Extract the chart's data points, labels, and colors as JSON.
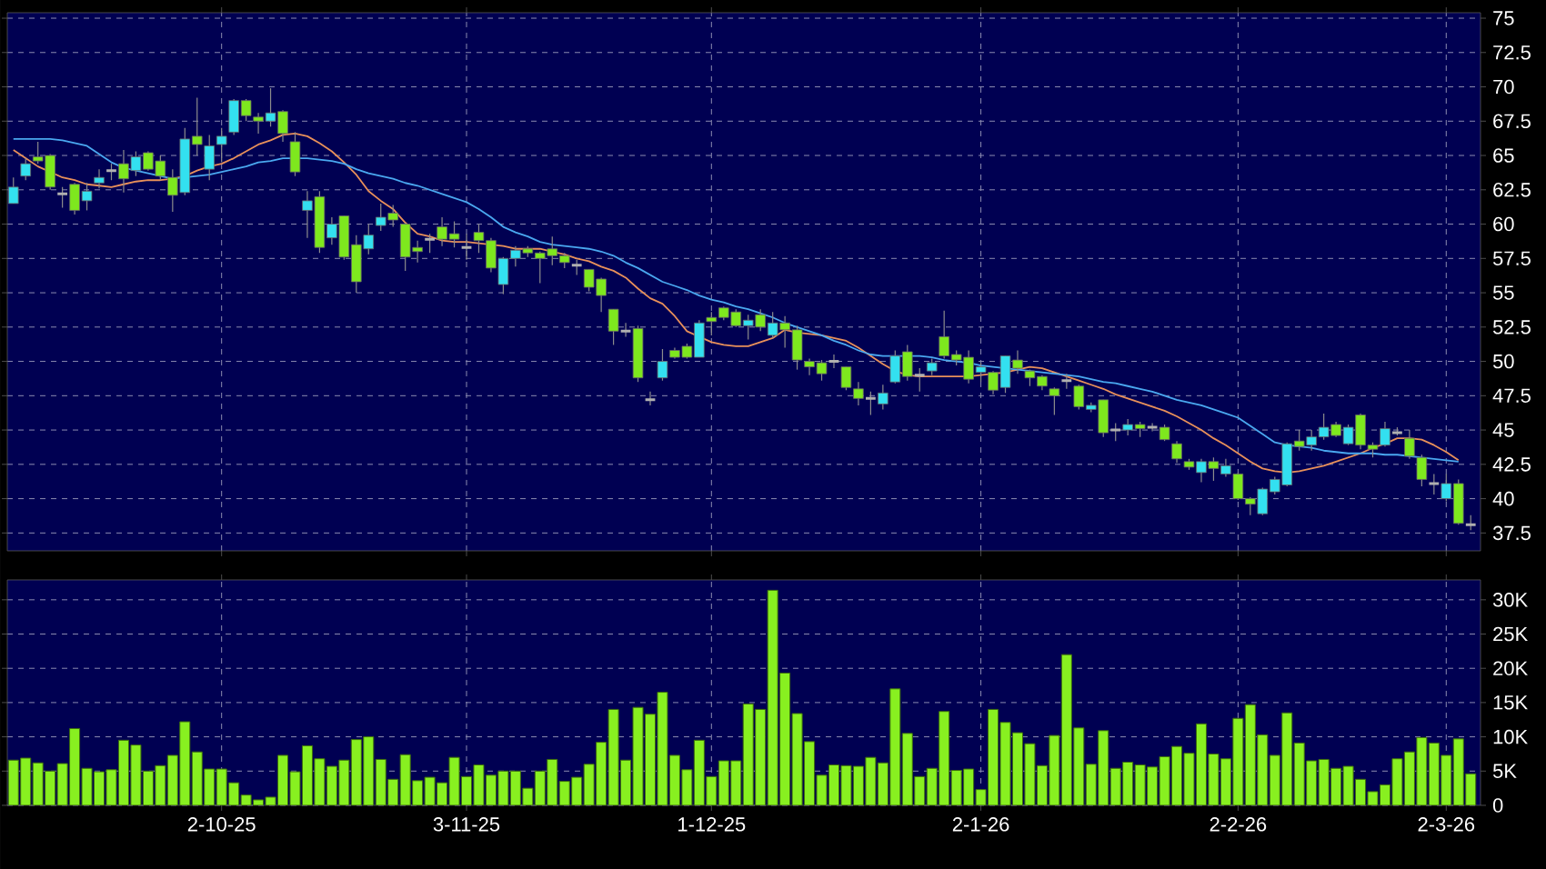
{
  "chart_data": [
    {
      "type": "candlestick",
      "grid": true,
      "tick_labels": "y",
      "ylim": [
        36.2,
        75.4
      ],
      "yticks": [
        37.5,
        40,
        42.5,
        45,
        47.5,
        50,
        52.5,
        55,
        57.5,
        60,
        62.5,
        65,
        67.5,
        70,
        72.5,
        75
      ],
      "categories": [
        null,
        null,
        null,
        null,
        null,
        null,
        null,
        null,
        null,
        null,
        null,
        null,
        null,
        null,
        null,
        null,
        null,
        null,
        null,
        null,
        null,
        null,
        null,
        null,
        null,
        null,
        null,
        null,
        null,
        null,
        null,
        null,
        null,
        null,
        null,
        null,
        null,
        null,
        null,
        null,
        null,
        null,
        null,
        null,
        null,
        null,
        null,
        null,
        null,
        null,
        null,
        null,
        null,
        null,
        null,
        null,
        null,
        null,
        null,
        null,
        null,
        null,
        null,
        null,
        null,
        null,
        null,
        null,
        null,
        null,
        null,
        null,
        null,
        null,
        null,
        null,
        null,
        null,
        null,
        null,
        null,
        null,
        null,
        null,
        null,
        null,
        null,
        null,
        null,
        null,
        null,
        null,
        null,
        null,
        null,
        null,
        null,
        null,
        null,
        null,
        null,
        null,
        null,
        null,
        null,
        null,
        null,
        null,
        null,
        null,
        null,
        null,
        null,
        null,
        null,
        null,
        null,
        null,
        null,
        null
      ],
      "ohlc": [
        [
          61.5,
          63.4,
          61.5,
          62.7
        ],
        [
          63.5,
          64.8,
          63.2,
          64.4
        ],
        [
          64.9,
          66.0,
          64.4,
          64.6
        ],
        [
          65.0,
          65.1,
          62.5,
          62.7
        ],
        [
          62.2,
          62.7,
          61.2,
          62.2
        ],
        [
          62.9,
          63.0,
          60.7,
          61.0
        ],
        [
          61.7,
          63.0,
          61.0,
          62.4
        ],
        [
          63.0,
          64.0,
          62.6,
          63.4
        ],
        [
          63.9,
          64.4,
          63.2,
          63.9
        ],
        [
          64.4,
          65.4,
          62.3,
          63.3
        ],
        [
          63.9,
          65.3,
          63.5,
          64.9
        ],
        [
          65.2,
          65.3,
          63.9,
          64.0
        ],
        [
          64.6,
          65.0,
          63.2,
          63.5
        ],
        [
          63.4,
          64.0,
          60.9,
          62.1
        ],
        [
          62.3,
          67.0,
          62.1,
          66.2
        ],
        [
          66.4,
          69.2,
          65.0,
          65.8
        ],
        [
          64.0,
          66.5,
          63.2,
          65.7
        ],
        [
          65.8,
          67.0,
          64.5,
          66.4
        ],
        [
          66.7,
          69.1,
          66.5,
          69.0
        ],
        [
          69.0,
          69.1,
          67.5,
          67.9
        ],
        [
          67.8,
          68.1,
          66.6,
          67.5
        ],
        [
          67.5,
          69.9,
          67.1,
          68.1
        ],
        [
          68.2,
          68.3,
          66.0,
          66.6
        ],
        [
          66.0,
          66.7,
          63.5,
          63.8
        ],
        [
          61.0,
          62.4,
          59.0,
          61.7
        ],
        [
          62.0,
          62.4,
          57.9,
          58.3
        ],
        [
          59.0,
          60.5,
          58.5,
          60.0
        ],
        [
          60.6,
          60.6,
          57.4,
          57.6
        ],
        [
          58.5,
          59.2,
          55.0,
          55.8
        ],
        [
          58.2,
          60.0,
          57.8,
          59.2
        ],
        [
          59.9,
          61.5,
          59.5,
          60.5
        ],
        [
          60.8,
          61.4,
          59.8,
          60.3
        ],
        [
          60.0,
          60.1,
          56.6,
          57.6
        ],
        [
          58.3,
          58.8,
          57.2,
          58.0
        ],
        [
          58.9,
          59.3,
          57.9,
          58.9
        ],
        [
          59.8,
          60.5,
          58.4,
          58.9
        ],
        [
          59.3,
          60.2,
          58.3,
          58.9
        ],
        [
          58.3,
          59.3,
          57.4,
          58.3
        ],
        [
          59.4,
          60.0,
          57.9,
          58.8
        ],
        [
          58.8,
          59.0,
          56.5,
          56.8
        ],
        [
          55.6,
          57.6,
          54.9,
          57.5
        ],
        [
          57.5,
          58.4,
          56.9,
          58.1
        ],
        [
          58.2,
          58.4,
          57.6,
          57.9
        ],
        [
          57.9,
          58.0,
          55.7,
          57.5
        ],
        [
          58.2,
          59.1,
          57.0,
          57.7
        ],
        [
          57.7,
          57.9,
          56.8,
          57.2
        ],
        [
          57.0,
          57.4,
          56.3,
          57.0
        ],
        [
          56.7,
          56.7,
          55.1,
          55.4
        ],
        [
          56.0,
          56.1,
          53.6,
          54.8
        ],
        [
          53.8,
          53.8,
          51.2,
          52.2
        ],
        [
          52.2,
          52.8,
          51.8,
          52.2
        ],
        [
          52.4,
          52.6,
          48.5,
          48.8
        ],
        [
          47.2,
          47.8,
          46.8,
          47.2
        ],
        [
          48.8,
          50.9,
          48.6,
          50.0
        ],
        [
          50.8,
          51.0,
          50.2,
          50.3
        ],
        [
          51.1,
          51.3,
          50.2,
          50.3
        ],
        [
          50.3,
          53.0,
          50.3,
          52.8
        ],
        [
          53.2,
          53.6,
          51.9,
          52.9
        ],
        [
          53.9,
          54.0,
          53.0,
          53.2
        ],
        [
          53.6,
          53.8,
          52.5,
          52.6
        ],
        [
          52.6,
          53.4,
          51.6,
          53.0
        ],
        [
          53.4,
          53.8,
          52.2,
          52.5
        ],
        [
          51.9,
          53.6,
          51.7,
          52.8
        ],
        [
          52.8,
          53.3,
          51.0,
          52.3
        ],
        [
          52.3,
          52.6,
          49.4,
          50.1
        ],
        [
          50.0,
          50.2,
          49.0,
          49.6
        ],
        [
          49.9,
          50.1,
          48.6,
          49.1
        ],
        [
          50.0,
          50.5,
          49.5,
          50.0
        ],
        [
          49.6,
          49.6,
          47.9,
          48.1
        ],
        [
          48.0,
          48.5,
          46.8,
          47.3
        ],
        [
          47.3,
          47.8,
          46.1,
          47.3
        ],
        [
          46.9,
          48.3,
          46.5,
          47.7
        ],
        [
          48.5,
          50.8,
          48.4,
          50.4
        ],
        [
          50.7,
          51.2,
          48.6,
          48.9
        ],
        [
          49.0,
          49.5,
          47.8,
          49.0
        ],
        [
          49.3,
          50.2,
          49.0,
          49.9
        ],
        [
          51.8,
          53.7,
          50.2,
          50.4
        ],
        [
          50.5,
          50.8,
          49.7,
          50.1
        ],
        [
          50.3,
          50.8,
          48.4,
          48.7
        ],
        [
          49.2,
          49.9,
          48.5,
          49.6
        ],
        [
          49.2,
          49.3,
          47.6,
          47.9
        ],
        [
          48.1,
          50.4,
          47.7,
          50.4
        ],
        [
          50.1,
          50.8,
          49.1,
          49.5
        ],
        [
          49.3,
          49.4,
          48.2,
          48.8
        ],
        [
          48.9,
          49.0,
          47.9,
          48.2
        ],
        [
          48.0,
          48.1,
          46.1,
          47.5
        ],
        [
          48.6,
          49.1,
          48.0,
          48.6
        ],
        [
          48.2,
          48.3,
          46.5,
          46.7
        ],
        [
          46.5,
          47.0,
          46.3,
          46.8
        ],
        [
          47.2,
          47.2,
          44.5,
          44.8
        ],
        [
          45.0,
          45.5,
          44.2,
          45.0
        ],
        [
          45.0,
          45.8,
          44.6,
          45.4
        ],
        [
          45.4,
          45.6,
          44.5,
          45.1
        ],
        [
          45.2,
          45.5,
          44.9,
          45.2
        ],
        [
          45.2,
          45.4,
          44.2,
          44.3
        ],
        [
          44.0,
          44.2,
          42.6,
          42.9
        ],
        [
          42.7,
          42.9,
          42.1,
          42.3
        ],
        [
          41.9,
          42.9,
          41.2,
          42.7
        ],
        [
          42.7,
          43.0,
          41.3,
          42.2
        ],
        [
          41.8,
          42.9,
          41.6,
          42.4
        ],
        [
          41.8,
          41.9,
          39.9,
          40.0
        ],
        [
          40.0,
          40.1,
          38.8,
          39.6
        ],
        [
          38.9,
          40.8,
          38.8,
          40.7
        ],
        [
          40.5,
          41.6,
          40.3,
          41.4
        ],
        [
          41.0,
          44.1,
          40.9,
          44.0
        ],
        [
          44.2,
          45.0,
          43.5,
          43.8
        ],
        [
          43.9,
          45.0,
          43.5,
          44.5
        ],
        [
          44.5,
          46.2,
          44.3,
          45.2
        ],
        [
          45.4,
          45.6,
          44.5,
          44.6
        ],
        [
          44.0,
          45.4,
          43.9,
          45.2
        ],
        [
          46.1,
          46.2,
          43.6,
          43.9
        ],
        [
          43.9,
          44.1,
          43.0,
          43.6
        ],
        [
          43.9,
          45.6,
          43.8,
          45.1
        ],
        [
          44.8,
          45.2,
          44.6,
          44.8
        ],
        [
          44.4,
          45.0,
          42.9,
          43.1
        ],
        [
          43.0,
          43.2,
          40.9,
          41.4
        ],
        [
          41.1,
          41.8,
          40.3,
          41.1
        ],
        [
          40.0,
          41.8,
          39.8,
          41.1
        ],
        [
          41.1,
          41.4,
          38.1,
          38.2
        ],
        [
          38.1,
          38.8,
          37.7,
          38.1
        ]
      ],
      "series": [
        {
          "type": "line",
          "color": "#e8905a",
          "values": [
            65.4,
            64.8,
            64.2,
            63.8,
            63.4,
            63.2,
            62.9,
            62.8,
            62.7,
            62.9,
            63.1,
            63.2,
            63.2,
            63.3,
            63.5,
            63.9,
            64.2,
            64.4,
            64.8,
            65.3,
            65.8,
            66.1,
            66.5,
            66.6,
            66.4,
            65.9,
            65.3,
            64.5,
            63.6,
            62.4,
            61.7,
            61.1,
            60.1,
            59.3,
            59.1,
            58.8,
            58.7,
            58.7,
            58.6,
            58.5,
            58.4,
            58.2,
            58.2,
            58.2,
            58.0,
            57.8,
            57.5,
            57.3,
            56.9,
            56.6,
            56.1,
            55.3,
            54.6,
            54.2,
            53.3,
            52.2,
            51.8,
            51.4,
            51.2,
            51.1,
            51.1,
            51.4,
            51.7,
            52.3,
            52.1,
            52.0,
            51.9,
            51.7,
            51.5,
            51.0,
            50.4,
            49.8,
            49.3,
            49.0,
            48.9,
            48.9,
            48.9,
            48.9,
            48.9,
            49.0,
            49.1,
            49.2,
            49.4,
            49.6,
            49.5,
            49.2,
            48.9,
            48.6,
            48.3,
            48.0,
            47.6,
            47.3,
            47.0,
            46.7,
            46.4,
            46.0,
            45.5,
            45.0,
            44.4,
            43.9,
            43.3,
            42.7,
            42.2,
            42.0,
            41.9,
            42.0,
            42.2,
            42.4,
            42.7,
            43.0,
            43.3,
            43.7,
            44.0,
            44.4,
            44.4,
            44.3,
            43.9,
            43.4,
            42.8,
            null
          ]
        },
        {
          "type": "line",
          "color": "#4aa8f0",
          "values": [
            66.2,
            66.2,
            66.2,
            66.2,
            66.1,
            65.9,
            65.7,
            65.1,
            64.5,
            64.1,
            63.9,
            63.7,
            63.5,
            63.3,
            63.4,
            63.5,
            63.6,
            63.8,
            64.0,
            64.2,
            64.5,
            64.6,
            64.8,
            64.8,
            64.8,
            64.7,
            64.6,
            64.4,
            64.0,
            63.7,
            63.5,
            63.3,
            63.0,
            62.8,
            62.5,
            62.2,
            61.9,
            61.6,
            61.1,
            60.5,
            59.8,
            59.4,
            59.1,
            58.7,
            58.5,
            58.4,
            58.3,
            58.2,
            58.0,
            57.7,
            57.2,
            56.8,
            56.3,
            55.8,
            55.5,
            55.2,
            54.8,
            54.5,
            54.3,
            54.0,
            53.8,
            53.5,
            53.2,
            52.8,
            52.5,
            52.2,
            51.9,
            51.5,
            51.2,
            50.8,
            50.5,
            50.4,
            50.4,
            50.4,
            50.4,
            50.3,
            50.1,
            50.0,
            49.9,
            49.7,
            49.6,
            49.5,
            49.4,
            49.3,
            49.2,
            49.1,
            49.0,
            48.9,
            48.7,
            48.5,
            48.4,
            48.2,
            48.0,
            47.8,
            47.5,
            47.2,
            47.0,
            46.8,
            46.5,
            46.2,
            45.9,
            45.3,
            44.7,
            44.1,
            43.9,
            43.8,
            43.7,
            43.5,
            43.4,
            43.3,
            43.3,
            43.3,
            43.2,
            43.2,
            43.1,
            43.0,
            42.9,
            42.8,
            42.7,
            null
          ]
        }
      ]
    },
    {
      "type": "bar",
      "grid": true,
      "color": "#88f020",
      "ylim": [
        0,
        32.9
      ],
      "yticks": [
        0,
        {
          "value": 5,
          "label": "5K"
        },
        {
          "value": 10,
          "label": "10K"
        },
        {
          "value": 15,
          "label": "15K"
        },
        {
          "value": 20,
          "label": "20K"
        },
        {
          "value": 25,
          "label": "25K"
        },
        {
          "value": 30,
          "label": "30K"
        }
      ],
      "categories": [
        null,
        null,
        null,
        null,
        null,
        null,
        null,
        null,
        null,
        null,
        null,
        null,
        null,
        null,
        null,
        null,
        null,
        "2-10-25",
        null,
        null,
        null,
        null,
        null,
        null,
        null,
        null,
        null,
        null,
        null,
        null,
        null,
        null,
        null,
        null,
        null,
        null,
        null,
        "3-11-25",
        null,
        null,
        null,
        null,
        null,
        null,
        null,
        null,
        null,
        null,
        null,
        null,
        null,
        null,
        null,
        null,
        null,
        null,
        null,
        "1-12-25",
        null,
        null,
        null,
        null,
        null,
        null,
        null,
        null,
        null,
        null,
        null,
        null,
        null,
        null,
        null,
        null,
        null,
        null,
        null,
        null,
        null,
        "2-1-26",
        null,
        null,
        null,
        null,
        null,
        null,
        null,
        null,
        null,
        null,
        null,
        null,
        null,
        null,
        null,
        null,
        null,
        null,
        null,
        null,
        "2-2-26",
        null,
        null,
        null,
        null,
        null,
        null,
        null,
        null,
        null,
        null,
        null,
        null,
        null,
        null,
        null,
        null,
        "2-3-26",
        null,
        null
      ],
      "values": [
        6.6,
        6.9,
        6.2,
        5.0,
        6.1,
        11.2,
        5.4,
        4.9,
        5.2,
        9.5,
        8.8,
        5.0,
        5.8,
        7.3,
        12.2,
        7.8,
        5.3,
        5.3,
        3.3,
        1.5,
        0.8,
        1.2,
        7.3,
        4.9,
        8.7,
        6.8,
        5.7,
        6.6,
        9.6,
        10.0,
        6.7,
        3.8,
        7.4,
        3.6,
        4.1,
        3.3,
        7.0,
        4.2,
        5.9,
        4.4,
        5.0,
        5.0,
        2.5,
        5.0,
        6.7,
        3.5,
        4.1,
        6.0,
        9.2,
        14.0,
        6.6,
        14.3,
        13.3,
        16.5,
        7.3,
        5.2,
        9.5,
        4.2,
        6.5,
        6.5,
        14.8,
        14.0,
        31.4,
        19.3,
        13.4,
        9.3,
        4.4,
        5.9,
        5.8,
        5.7,
        7.0,
        6.2,
        17.0,
        10.5,
        4.2,
        5.4,
        13.7,
        5.1,
        5.3,
        2.3,
        14.0,
        12.1,
        10.6,
        9.0,
        5.8,
        10.2,
        22.0,
        11.3,
        6.0,
        10.9,
        5.4,
        6.3,
        5.9,
        5.6,
        7.1,
        8.6,
        7.6,
        11.9,
        7.5,
        6.8,
        12.7,
        14.7,
        10.3,
        7.3,
        13.5,
        9.1,
        6.5,
        6.7,
        5.4,
        5.7,
        3.8,
        2.0,
        3.0,
        6.8,
        7.8,
        9.9,
        9.1,
        7.3,
        9.7,
        4.6
      ]
    }
  ]
}
